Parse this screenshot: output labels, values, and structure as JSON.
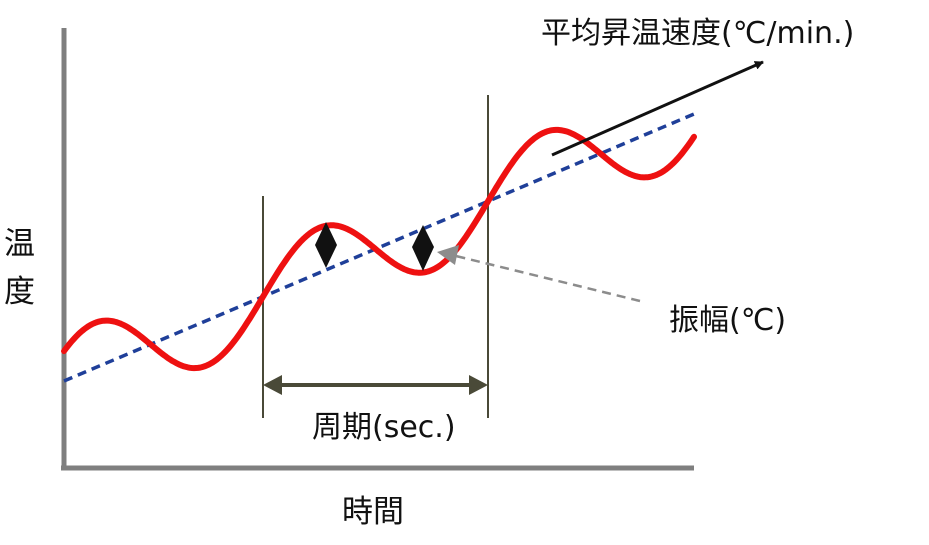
{
  "labels": {
    "heating_rate": "平均昇温速度(℃/min.)",
    "amplitude": "振幅(℃)",
    "period": "周期(sec.)",
    "x_axis": "時間",
    "y_axis_char1": "温",
    "y_axis_char2": "度"
  },
  "colors": {
    "wave": "#ee1111",
    "trend": "#1f3f99",
    "axis": "#7f7f7f",
    "marker_lines": "#4a4a38",
    "arrow": "#111111",
    "pointer": "#8c8c8c"
  }
}
